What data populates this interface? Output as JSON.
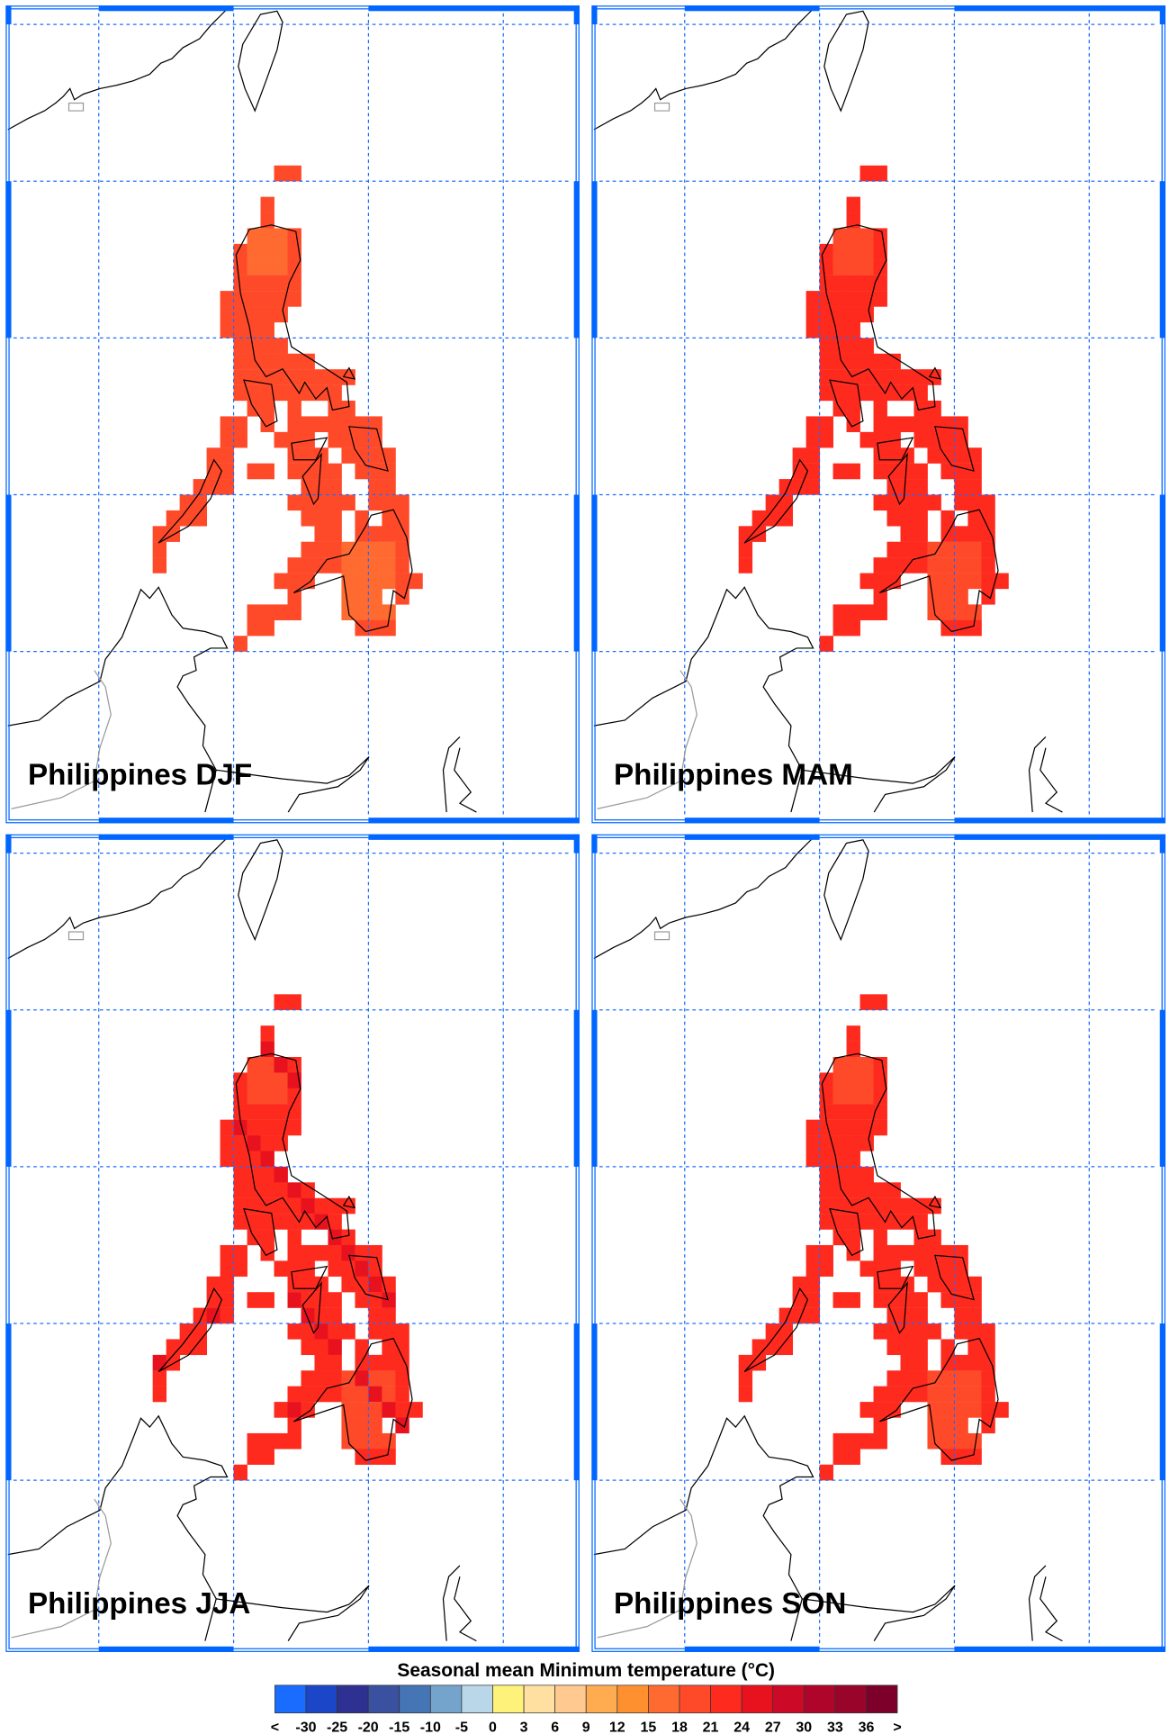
{
  "figure": {
    "colorbar_title": "Seasonal mean Minimum temperature (°C)",
    "colorbar": {
      "labels": [
        "<",
        "-30",
        "-25",
        "-20",
        "-15",
        "-10",
        "-5",
        "0",
        "3",
        "6",
        "9",
        "12",
        "15",
        "18",
        "21",
        "24",
        "27",
        "30",
        "33",
        "36",
        ">"
      ],
      "colors": [
        "#1a6cff",
        "#1c46c8",
        "#2e3192",
        "#3a519f",
        "#4575b4",
        "#74a4cc",
        "#b9d7e8",
        "#fff27a",
        "#ffe0a0",
        "#ffc990",
        "#ffac50",
        "#ff9030",
        "#ff6a30",
        "#ff4a2a",
        "#ff2a1e",
        "#e8121e",
        "#cc0a28",
        "#b0052a",
        "#98042a",
        "#7c002a"
      ]
    },
    "panels": [
      {
        "title": "Philippines DJF",
        "default_class": 13,
        "highland_class": 12
      },
      {
        "title": "Philippines MAM",
        "default_class": 14,
        "highland_class": 13
      },
      {
        "title": "Philippines JJA",
        "default_class": 14,
        "highland_class": 13
      },
      {
        "title": "Philippines SON",
        "default_class": 14,
        "highland_class": 13
      }
    ],
    "grid": {
      "lon_lines": [
        115,
        120,
        125,
        130
      ],
      "lat_lines": [
        25,
        20,
        15,
        10,
        5
      ],
      "resolution_deg": 0.5
    },
    "highlands": [
      {
        "lat": [
          17.0,
          18.5
        ],
        "lon": [
          120.5,
          122.0
        ]
      },
      {
        "lat": [
          6.0,
          8.5
        ],
        "lon": [
          124.0,
          126.0
        ]
      }
    ],
    "land_rows": [
      {
        "lat": 20.5,
        "lon": [
          [
            121.5,
            122.5
          ]
        ]
      },
      {
        "lat": 19.5,
        "lon": [
          [
            121.0,
            121.5
          ]
        ]
      },
      {
        "lat": 19.0,
        "lon": [
          [
            121.0,
            121.5
          ]
        ]
      },
      {
        "lat": 18.5,
        "lon": [
          [
            120.5,
            122.5
          ]
        ]
      },
      {
        "lat": 18.0,
        "lon": [
          [
            120.0,
            122.5
          ]
        ]
      },
      {
        "lat": 17.5,
        "lon": [
          [
            120.0,
            122.5
          ]
        ]
      },
      {
        "lat": 17.0,
        "lon": [
          [
            120.0,
            122.5
          ]
        ]
      },
      {
        "lat": 16.5,
        "lon": [
          [
            119.5,
            122.5
          ]
        ]
      },
      {
        "lat": 16.0,
        "lon": [
          [
            119.5,
            122.0
          ]
        ]
      },
      {
        "lat": 15.5,
        "lon": [
          [
            119.5,
            121.5
          ]
        ]
      },
      {
        "lat": 15.0,
        "lon": [
          [
            120.0,
            122.0
          ]
        ]
      },
      {
        "lat": 14.5,
        "lon": [
          [
            120.0,
            123.0
          ]
        ]
      },
      {
        "lat": 14.0,
        "lon": [
          [
            120.0,
            124.5
          ]
        ]
      },
      {
        "lat": 13.5,
        "lon": [
          [
            120.0,
            124.0
          ]
        ]
      },
      {
        "lat": 13.0,
        "lon": [
          [
            120.5,
            121.5
          ],
          [
            122.0,
            122.5
          ],
          [
            123.5,
            124.5
          ]
        ]
      },
      {
        "lat": 12.5,
        "lon": [
          [
            119.5,
            120.5
          ],
          [
            121.0,
            121.5
          ],
          [
            122.0,
            125.5
          ]
        ]
      },
      {
        "lat": 12.0,
        "lon": [
          [
            119.5,
            120.5
          ],
          [
            121.5,
            123.0
          ],
          [
            123.5,
            125.5
          ]
        ]
      },
      {
        "lat": 11.5,
        "lon": [
          [
            119.0,
            120.0
          ],
          [
            122.0,
            123.5
          ],
          [
            124.0,
            126.0
          ]
        ]
      },
      {
        "lat": 11.0,
        "lon": [
          [
            119.0,
            120.0
          ],
          [
            120.5,
            121.5
          ],
          [
            122.0,
            124.0
          ],
          [
            124.5,
            126.0
          ]
        ]
      },
      {
        "lat": 10.5,
        "lon": [
          [
            118.5,
            120.0
          ],
          [
            122.5,
            124.0
          ],
          [
            125.0,
            126.0
          ]
        ]
      },
      {
        "lat": 10.0,
        "lon": [
          [
            118.0,
            119.0
          ],
          [
            122.0,
            124.5
          ],
          [
            125.0,
            126.5
          ]
        ]
      },
      {
        "lat": 9.5,
        "lon": [
          [
            117.5,
            119.0
          ],
          [
            122.5,
            124.0
          ],
          [
            124.5,
            125.0
          ],
          [
            125.5,
            126.5
          ]
        ]
      },
      {
        "lat": 9.0,
        "lon": [
          [
            117.0,
            118.0
          ],
          [
            123.0,
            124.0
          ],
          [
            124.5,
            126.5
          ]
        ]
      },
      {
        "lat": 8.5,
        "lon": [
          [
            117.0,
            117.5
          ],
          [
            122.5,
            126.5
          ]
        ]
      },
      {
        "lat": 8.0,
        "lon": [
          [
            117.0,
            117.5
          ],
          [
            122.0,
            126.5
          ]
        ]
      },
      {
        "lat": 7.5,
        "lon": [
          [
            121.5,
            123.0
          ],
          [
            124.0,
            127.0
          ]
        ]
      },
      {
        "lat": 7.0,
        "lon": [
          [
            122.0,
            122.5
          ],
          [
            124.0,
            125.5
          ],
          [
            126.0,
            126.5
          ]
        ]
      },
      {
        "lat": 6.5,
        "lon": [
          [
            120.5,
            122.5
          ],
          [
            124.0,
            126.0
          ]
        ]
      },
      {
        "lat": 6.0,
        "lon": [
          [
            120.5,
            121.5
          ],
          [
            124.5,
            126.0
          ]
        ]
      },
      {
        "lat": 5.5,
        "lon": [
          [
            120.0,
            120.5
          ]
        ]
      }
    ],
    "colors": {
      "frame": "#0066ff",
      "grid": "#1a6cff",
      "coast": "#000000",
      "border": "#999999"
    }
  }
}
